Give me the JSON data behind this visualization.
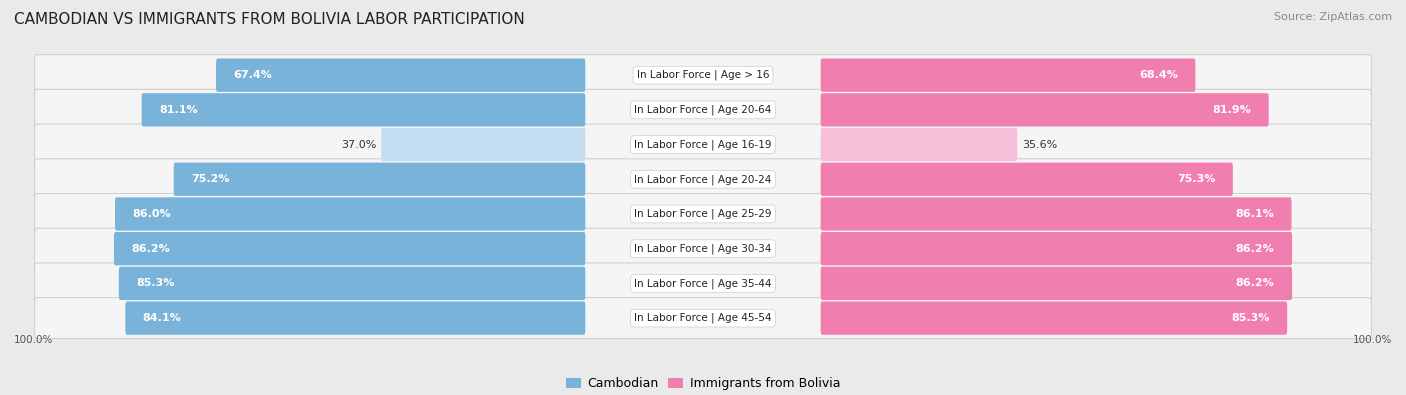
{
  "title": "CAMBODIAN VS IMMIGRANTS FROM BOLIVIA LABOR PARTICIPATION",
  "source": "Source: ZipAtlas.com",
  "categories": [
    "In Labor Force | Age > 16",
    "In Labor Force | Age 20-64",
    "In Labor Force | Age 16-19",
    "In Labor Force | Age 20-24",
    "In Labor Force | Age 25-29",
    "In Labor Force | Age 30-34",
    "In Labor Force | Age 35-44",
    "In Labor Force | Age 45-54"
  ],
  "cambodian_values": [
    67.4,
    81.1,
    37.0,
    75.2,
    86.0,
    86.2,
    85.3,
    84.1
  ],
  "bolivia_values": [
    68.4,
    81.9,
    35.6,
    75.3,
    86.1,
    86.2,
    86.2,
    85.3
  ],
  "cambodian_color": "#7ab3d9",
  "cambodian_color_light": "#c5ddf0",
  "bolivia_color": "#f07eae",
  "bolivia_color_light": "#f8c0d8",
  "bg_color": "#eaeaea",
  "row_bg_color": "#f5f5f5",
  "row_border_color": "#d0d0d0",
  "legend_cambodian": "Cambodian",
  "legend_bolivia": "Immigrants from Bolivia",
  "label_100_left": "100.0%",
  "label_100_right": "100.0%",
  "title_fontsize": 11,
  "source_fontsize": 8,
  "bar_label_fontsize": 8,
  "cat_label_fontsize": 7.5,
  "legend_fontsize": 9
}
